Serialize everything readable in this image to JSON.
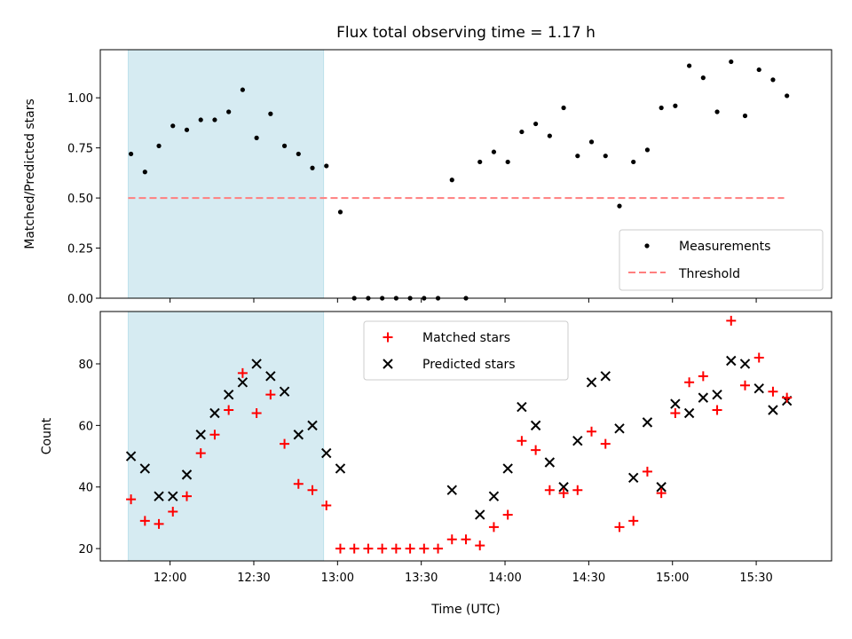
{
  "chart_data": [
    {
      "type": "scatter",
      "title": "Flux total observing time = 1.17 h",
      "xlabel": "",
      "ylabel": "Matched/Predicted stars",
      "ylim": [
        0,
        1.24
      ],
      "yticks": [
        "0.00",
        "0.25",
        "0.50",
        "0.75",
        "1.00"
      ],
      "legend_position": "lower-right",
      "shaded_span": {
        "start": "11:45",
        "end": "12:55",
        "color": "#add8e6"
      },
      "threshold": {
        "name": "Threshold",
        "value": 0.5,
        "x_start": "11:45",
        "x_end": "15:40",
        "color": "#ff7f7f"
      },
      "series": [
        {
          "name": "Measurements",
          "marker": "dot",
          "color": "#000000",
          "x": [
            "11:46",
            "11:51",
            "11:56",
            "12:01",
            "12:06",
            "12:11",
            "12:16",
            "12:21",
            "12:26",
            "12:31",
            "12:36",
            "12:41",
            "12:46",
            "12:51",
            "12:56",
            "13:01",
            "13:06",
            "13:11",
            "13:16",
            "13:21",
            "13:26",
            "13:31",
            "13:36",
            "13:41",
            "13:46",
            "13:51",
            "13:56",
            "14:01",
            "14:06",
            "14:11",
            "14:16",
            "14:21",
            "14:26",
            "14:31",
            "14:36",
            "14:41",
            "14:46",
            "14:51",
            "14:56",
            "15:01",
            "15:06",
            "15:11",
            "15:16",
            "15:21",
            "15:26",
            "15:31",
            "15:36",
            "15:41"
          ],
          "y": [
            0.72,
            0.63,
            0.76,
            0.86,
            0.84,
            0.89,
            0.89,
            0.93,
            1.04,
            0.8,
            0.92,
            0.76,
            0.72,
            0.65,
            0.66,
            0.43,
            0,
            0,
            0,
            0,
            0,
            0,
            0,
            0.59,
            0,
            0.68,
            0.73,
            0.68,
            0.83,
            0.87,
            0.81,
            0.95,
            0.71,
            0.78,
            0.71,
            0.46,
            0.68,
            0.74,
            0.95,
            0.96,
            1.16,
            1.1,
            0.93,
            1.18,
            0.91,
            1.14,
            1.09,
            1.01
          ]
        }
      ]
    },
    {
      "type": "scatter",
      "title": "",
      "xlabel": "Time (UTC)",
      "ylabel": "Count",
      "ylim": [
        16,
        97
      ],
      "yticks": [
        "20",
        "40",
        "60",
        "80"
      ],
      "xlim": [
        "11:35",
        "15:57"
      ],
      "xticks": [
        "12:00",
        "12:30",
        "13:00",
        "13:30",
        "14:00",
        "14:30",
        "15:00",
        "15:30"
      ],
      "legend_position": "upper-center",
      "shaded_span": {
        "start": "11:45",
        "end": "12:55",
        "color": "#add8e6"
      },
      "series": [
        {
          "name": "Matched stars",
          "marker": "plus",
          "color": "#ff0000",
          "x": [
            "11:46",
            "11:51",
            "11:56",
            "12:01",
            "12:06",
            "12:11",
            "12:16",
            "12:21",
            "12:26",
            "12:31",
            "12:36",
            "12:41",
            "12:46",
            "12:51",
            "12:56",
            "13:01",
            "13:06",
            "13:11",
            "13:16",
            "13:21",
            "13:26",
            "13:31",
            "13:36",
            "13:41",
            "13:46",
            "13:51",
            "13:56",
            "14:01",
            "14:06",
            "14:11",
            "14:16",
            "14:21",
            "14:26",
            "14:31",
            "14:36",
            "14:41",
            "14:46",
            "14:51",
            "14:56",
            "15:01",
            "15:06",
            "15:11",
            "15:16",
            "15:21",
            "15:26",
            "15:31",
            "15:36",
            "15:41"
          ],
          "y": [
            36,
            29,
            28,
            32,
            37,
            51,
            57,
            65,
            77,
            64,
            70,
            54,
            41,
            39,
            34,
            20,
            20,
            20,
            20,
            20,
            20,
            20,
            20,
            23,
            23,
            21,
            27,
            31,
            55,
            52,
            39,
            38,
            39,
            58,
            54,
            27,
            29,
            45,
            38,
            64,
            74,
            76,
            65,
            94,
            73,
            82,
            71,
            69
          ]
        },
        {
          "name": "Predicted stars",
          "marker": "x",
          "color": "#000000",
          "x": [
            "11:46",
            "11:51",
            "11:56",
            "12:01",
            "12:06",
            "12:11",
            "12:16",
            "12:21",
            "12:26",
            "12:31",
            "12:36",
            "12:41",
            "12:46",
            "12:51",
            "12:56",
            "13:01",
            "13:41",
            "13:51",
            "13:56",
            "14:01",
            "14:06",
            "14:11",
            "14:16",
            "14:21",
            "14:26",
            "14:31",
            "14:36",
            "14:41",
            "14:46",
            "14:51",
            "14:56",
            "15:01",
            "15:06",
            "15:11",
            "15:16",
            "15:21",
            "15:26",
            "15:31",
            "15:36",
            "15:41"
          ],
          "y": [
            50,
            46,
            37,
            37,
            44,
            57,
            64,
            70,
            74,
            80,
            76,
            71,
            57,
            60,
            51,
            46,
            39,
            31,
            37,
            46,
            66,
            60,
            48,
            40,
            55,
            74,
            76,
            59,
            43,
            61,
            40,
            67,
            64,
            69,
            70,
            81,
            80,
            72,
            65,
            68
          ]
        }
      ]
    }
  ]
}
